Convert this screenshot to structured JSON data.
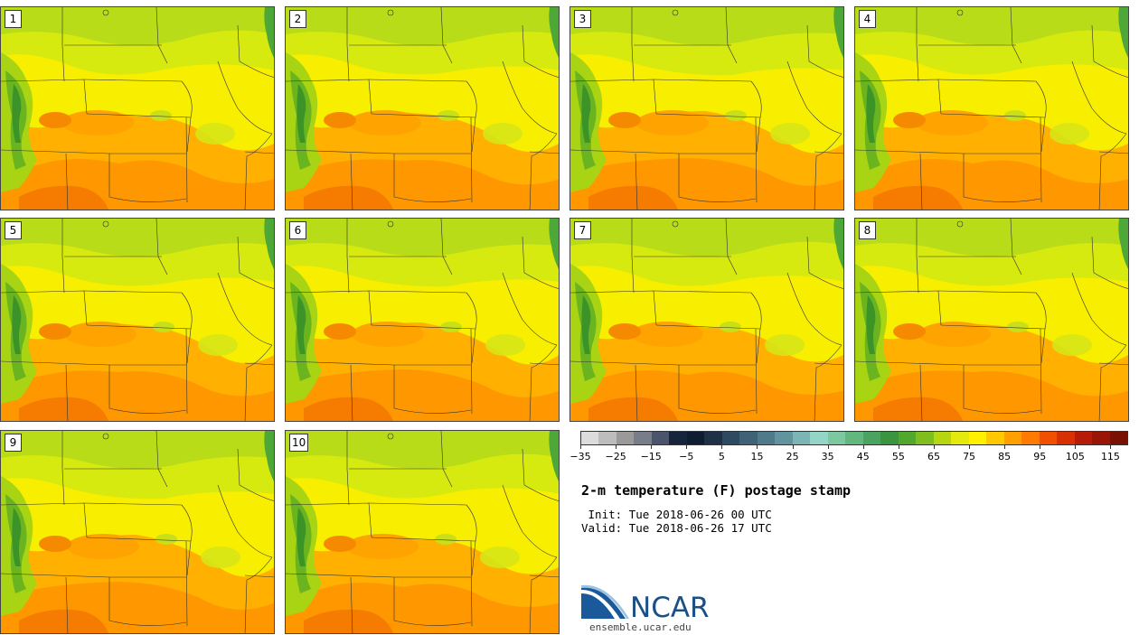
{
  "panels": [
    "1",
    "2",
    "3",
    "4",
    "5",
    "6",
    "7",
    "8",
    "9",
    "10"
  ],
  "colorbar": {
    "colors": [
      "#dcdcdc",
      "#bdbdbd",
      "#9a9a9a",
      "#787d8a",
      "#4a546b",
      "#16243e",
      "#0f1d33",
      "#1e3146",
      "#2d4a60",
      "#3f6276",
      "#507a8a",
      "#62949f",
      "#7bb5b4",
      "#93d6c7",
      "#7cc8a0",
      "#62b77e",
      "#4aa35f",
      "#3a9440",
      "#52a82c",
      "#7fbe1c",
      "#b6d610",
      "#e4ea0c",
      "#fff000",
      "#ffc800",
      "#ffa000",
      "#ff7a00",
      "#f05000",
      "#d83000",
      "#b81a08",
      "#9a1506",
      "#7a1004"
    ],
    "tick_labels": [
      "−35",
      "−25",
      "−15",
      "−5",
      "5",
      "15",
      "25",
      "35",
      "45",
      "55",
      "65",
      "75",
      "85",
      "95",
      "105",
      "115"
    ],
    "tick_values": [
      -35,
      -25,
      -15,
      -5,
      5,
      15,
      25,
      35,
      45,
      55,
      65,
      75,
      85,
      95,
      105,
      115
    ],
    "min": -35,
    "max": 120
  },
  "title": "2-m temperature (F) postage stamp",
  "init": " Init: Tue 2018-06-26 00 UTC",
  "valid": "Valid: Tue 2018-06-26 17 UTC",
  "logo_text": "NCAR",
  "logo_url": "ensemble.ucar.edu"
}
